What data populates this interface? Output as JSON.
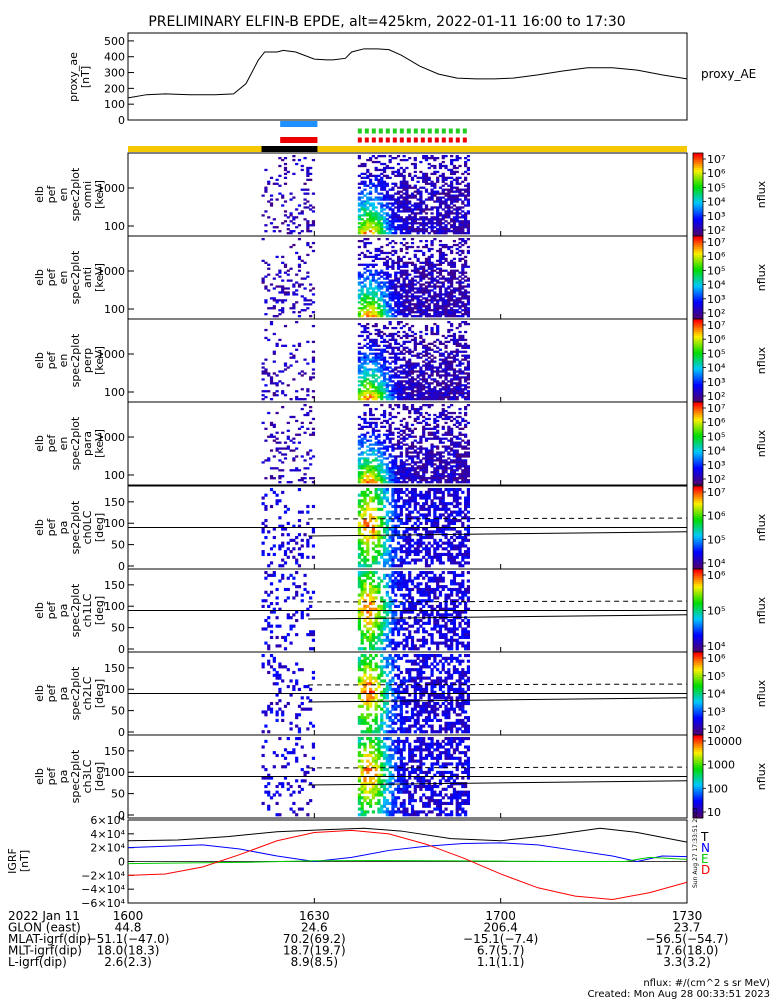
{
  "title": "PRELIMINARY ELFIN-B EPDE, alt=425km, 2022-01-11 16:00 to 17:30",
  "chart_data": {
    "type": "heatmap",
    "time_axis": {
      "date_label": "2022 Jan 11",
      "ticks": [
        "1600",
        "1630",
        "1700",
        "1730"
      ],
      "range_minutes": [
        0,
        90
      ]
    },
    "proxy_ae": {
      "ylabel": "proxy_ae",
      "units": "[nT]",
      "legend": "proxy_AE",
      "yticks": [
        "0",
        "100",
        "200",
        "300",
        "400",
        "500"
      ],
      "ylim": [
        0,
        550
      ],
      "t": [
        0,
        3,
        6,
        10,
        14,
        17,
        19,
        21,
        22,
        24,
        25,
        27,
        30,
        32,
        33,
        35,
        36,
        38,
        40,
        42,
        44,
        47,
        50,
        53,
        56,
        59,
        62,
        66,
        70,
        74,
        78,
        82,
        86,
        90
      ],
      "values": [
        140,
        160,
        165,
        160,
        160,
        165,
        230,
        380,
        430,
        430,
        440,
        430,
        385,
        380,
        380,
        390,
        430,
        450,
        450,
        445,
        410,
        340,
        290,
        265,
        260,
        260,
        265,
        285,
        310,
        330,
        330,
        315,
        285,
        260
      ]
    },
    "bars": {
      "blue_label_range": [
        24.5,
        30.5
      ],
      "red_label_range": [
        24.5,
        30.5
      ],
      "green_dotted_range": [
        37,
        55
      ],
      "red_dotted_range": [
        37,
        55
      ],
      "black_segment_range": [
        21.5,
        30.5
      ]
    },
    "energy_panels": [
      {
        "label": [
          "elb",
          "pef",
          "en",
          "spec2plot",
          "omni",
          "[keV]"
        ],
        "yticks": [
          "100",
          "1000"
        ]
      },
      {
        "label": [
          "elb",
          "pef",
          "en",
          "spec2plot",
          "anti",
          "[keV]"
        ],
        "yticks": [
          "100",
          "1000"
        ]
      },
      {
        "label": [
          "elb",
          "pef",
          "en",
          "spec2plot",
          "perp",
          "[keV]"
        ],
        "yticks": [
          "100",
          "1000"
        ]
      },
      {
        "label": [
          "elb",
          "pef",
          "en",
          "spec2plot",
          "para",
          "[keV]"
        ],
        "yticks": [
          "100",
          "1000"
        ]
      }
    ],
    "pitch_panels": [
      {
        "label": [
          "elb",
          "pef",
          "pa",
          "spec2plot",
          "ch0LC",
          "[deg]"
        ],
        "yticks": [
          "0",
          "50",
          "100",
          "150"
        ]
      },
      {
        "label": [
          "elb",
          "pef",
          "pa",
          "spec2plot",
          "ch1LC",
          "[deg]"
        ],
        "yticks": [
          "0",
          "50",
          "100",
          "150"
        ]
      },
      {
        "label": [
          "elb",
          "pef",
          "pa",
          "spec2plot",
          "ch2LC",
          "[deg]"
        ],
        "yticks": [
          "0",
          "50",
          "100",
          "150"
        ]
      },
      {
        "label": [
          "elb",
          "pef",
          "pa",
          "spec2plot",
          "ch3LC",
          "[deg]"
        ],
        "yticks": [
          "0",
          "50",
          "100",
          "150"
        ]
      }
    ],
    "colorbars": [
      {
        "label": "nflux",
        "ticks": [
          "10²",
          "10³",
          "10⁴",
          "10⁵",
          "10⁶",
          "10⁷"
        ]
      },
      {
        "label": "nflux",
        "ticks": [
          "10²",
          "10³",
          "10⁴",
          "10⁵",
          "10⁶",
          "10⁷"
        ]
      },
      {
        "label": "nflux",
        "ticks": [
          "10²",
          "10³",
          "10⁴",
          "10⁵",
          "10⁶",
          "10⁷"
        ]
      },
      {
        "label": "nflux",
        "ticks": [
          "10²",
          "10³",
          "10⁴",
          "10⁵",
          "10⁶",
          "10⁷"
        ]
      },
      {
        "label": "nflux",
        "ticks": [
          "10⁴",
          "10⁵",
          "10⁶",
          "10⁷"
        ]
      },
      {
        "label": "nflux",
        "ticks": [
          "10⁴",
          "10⁵",
          "10⁶"
        ]
      },
      {
        "label": "nflux",
        "ticks": [
          "10²",
          "10³",
          "10⁴",
          "10⁵",
          "10⁶"
        ]
      },
      {
        "label": "nflux",
        "ticks": [
          "10",
          "100",
          "1000",
          "10000"
        ]
      }
    ],
    "igrf": {
      "ylabel": "IGRF",
      "units": "[nT]",
      "yticks": [
        "−6×10⁴",
        "−4×10⁴",
        "−2×10⁴",
        "0",
        "2×10⁴",
        "4×10⁴",
        "6×10⁴"
      ],
      "ylim": [
        -60000,
        60000
      ],
      "legend": [
        {
          "name": "T",
          "color": "#000000"
        },
        {
          "name": "N",
          "color": "#0000ff"
        },
        {
          "name": "E",
          "color": "#00cc00"
        },
        {
          "name": "D",
          "color": "#ff0000"
        }
      ],
      "series": [
        {
          "name": "T",
          "color": "#000000",
          "t": [
            0,
            8,
            16,
            24,
            32,
            38,
            44,
            52,
            60,
            68,
            76,
            82,
            90
          ],
          "values": [
            30000,
            31000,
            36000,
            43000,
            46000,
            48000,
            44000,
            33000,
            30000,
            38000,
            48000,
            42000,
            28000
          ]
        },
        {
          "name": "N",
          "color": "#0000ff",
          "t": [
            0,
            6,
            12,
            18,
            24,
            30,
            36,
            42,
            48,
            54,
            60,
            66,
            72,
            78,
            82,
            86,
            90
          ],
          "values": [
            20000,
            22000,
            24000,
            18000,
            8000,
            0,
            6000,
            16000,
            22000,
            26000,
            27000,
            24000,
            16000,
            8000,
            0,
            8000,
            7000
          ]
        },
        {
          "name": "E",
          "color": "#00cc00",
          "t": [
            0,
            10,
            20,
            30,
            40,
            50,
            60,
            70,
            80,
            84,
            90
          ],
          "values": [
            -3000,
            -2000,
            -1000,
            1000,
            1500,
            1000,
            500,
            0,
            0,
            6000,
            3000
          ]
        },
        {
          "name": "D",
          "color": "#ff0000",
          "t": [
            0,
            6,
            12,
            18,
            24,
            30,
            36,
            42,
            48,
            54,
            60,
            66,
            72,
            78,
            84,
            90
          ],
          "values": [
            -20000,
            -18000,
            -8000,
            10000,
            30000,
            42000,
            45000,
            40000,
            25000,
            5000,
            -18000,
            -38000,
            -50000,
            -55000,
            -45000,
            -30000
          ]
        }
      ]
    }
  },
  "footer": {
    "rows": [
      {
        "label": "2022 Jan 11",
        "vals": [
          "1600",
          "1630",
          "1700",
          "1730"
        ]
      },
      {
        "label": "GLON (east)",
        "vals": [
          "44.8",
          "24.6",
          "206.4",
          "23.7"
        ]
      },
      {
        "label": "MLAT-igrf(dip)",
        "vals": [
          "−51.1(−47.0)",
          "70.2(69.2)",
          "−15.1(−7.4)",
          "−56.5(−54.7)"
        ]
      },
      {
        "label": "MLT-igrf(dip)",
        "vals": [
          "18.0(18.3)",
          "18.7(19.7)",
          "6.7(5.7)",
          "17.6(18.0)"
        ]
      },
      {
        "label": "L-igrf(dip)",
        "vals": [
          "2.6(2.3)",
          "8.9(8.5)",
          "1.1(1.1)",
          "3.3(3.2)"
        ]
      }
    ],
    "units_note": "nflux: #/(cm^2 s sr MeV)",
    "created": "Created: Mon Aug 28 00:33:51 2023",
    "side_stamp": "Sun Aug 27 17:33:51 2023"
  }
}
